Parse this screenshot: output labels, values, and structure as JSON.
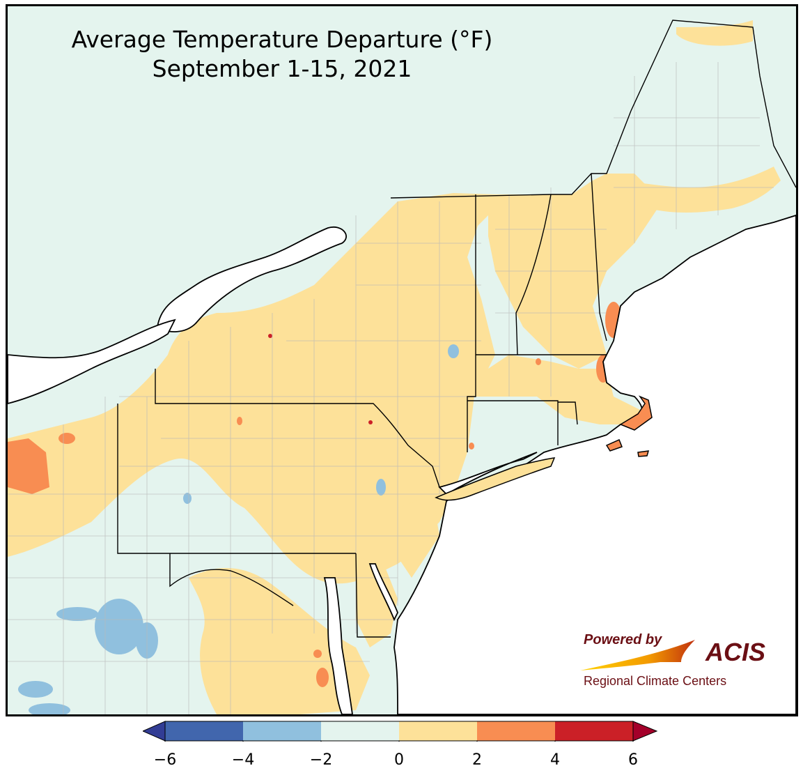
{
  "title": {
    "line1": "Average Temperature Departure (°F)",
    "line2": "September 1-15, 2021"
  },
  "colors": {
    "lake": "#ffffff",
    "ocean": "#ffffff",
    "state_border": "#000000",
    "county_border": "#b9b9b9"
  },
  "legend": {
    "ticks": [
      "−6",
      "−4",
      "−2",
      "0",
      "2",
      "4",
      "6"
    ],
    "bins": [
      {
        "range": "-6 to -4",
        "color": "#4166ad"
      },
      {
        "range": "-4 to -2",
        "color": "#90c0de"
      },
      {
        "range": "-2 to 0",
        "color": "#e4f4ee"
      },
      {
        "range": "0 to 2",
        "color": "#fde199"
      },
      {
        "range": "2 to 4",
        "color": "#f88d52"
      },
      {
        "range": "4 to 6",
        "color": "#cb2027"
      }
    ],
    "under_color": "#323d95",
    "over_color": "#a4002a"
  },
  "logo": {
    "powered_by": "Powered by",
    "acis": "ACIS",
    "tagline": "Regional Climate Centers",
    "color": "#6b0f14"
  }
}
